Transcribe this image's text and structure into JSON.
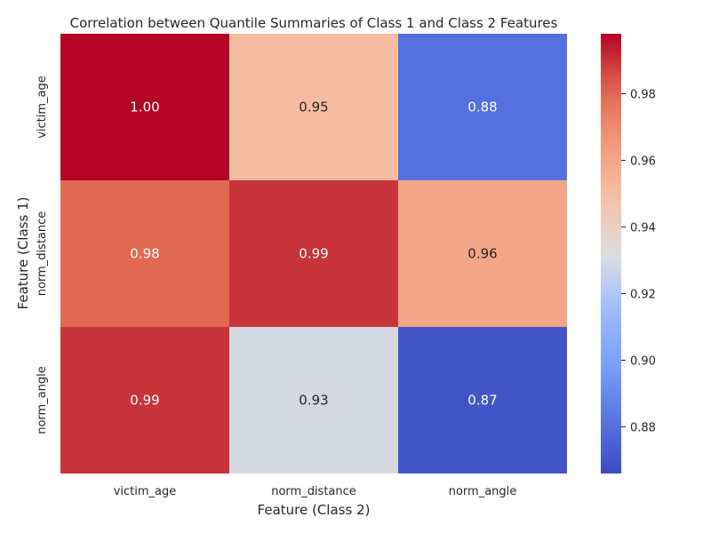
{
  "chart_data": {
    "type": "heatmap",
    "title": "Correlation between Quantile Summaries of Class 1 and Class 2 Features",
    "xlabel": "Feature (Class 2)",
    "ylabel": "Feature (Class 1)",
    "x_categories": [
      "victim_age",
      "norm_distance",
      "norm_angle"
    ],
    "y_categories": [
      "victim_age",
      "norm_distance",
      "norm_angle"
    ],
    "values": [
      [
        1.0,
        0.95,
        0.88
      ],
      [
        0.98,
        0.99,
        0.96
      ],
      [
        0.99,
        0.93,
        0.87
      ]
    ],
    "annotations": [
      [
        "1.00",
        "0.95",
        "0.88"
      ],
      [
        "0.98",
        "0.99",
        "0.96"
      ],
      [
        "0.99",
        "0.93",
        "0.87"
      ]
    ],
    "colormap": "coolwarm",
    "colorbar": {
      "min": 0.866,
      "max": 0.998,
      "ticks": [
        0.88,
        0.9,
        0.92,
        0.94,
        0.96,
        0.98
      ],
      "tick_labels": [
        "0.88",
        "0.90",
        "0.92",
        "0.94",
        "0.96",
        "0.98"
      ]
    },
    "colors": {
      "low": "#3b4cc0",
      "mid": "#dddddd",
      "high": "#b40426"
    }
  }
}
